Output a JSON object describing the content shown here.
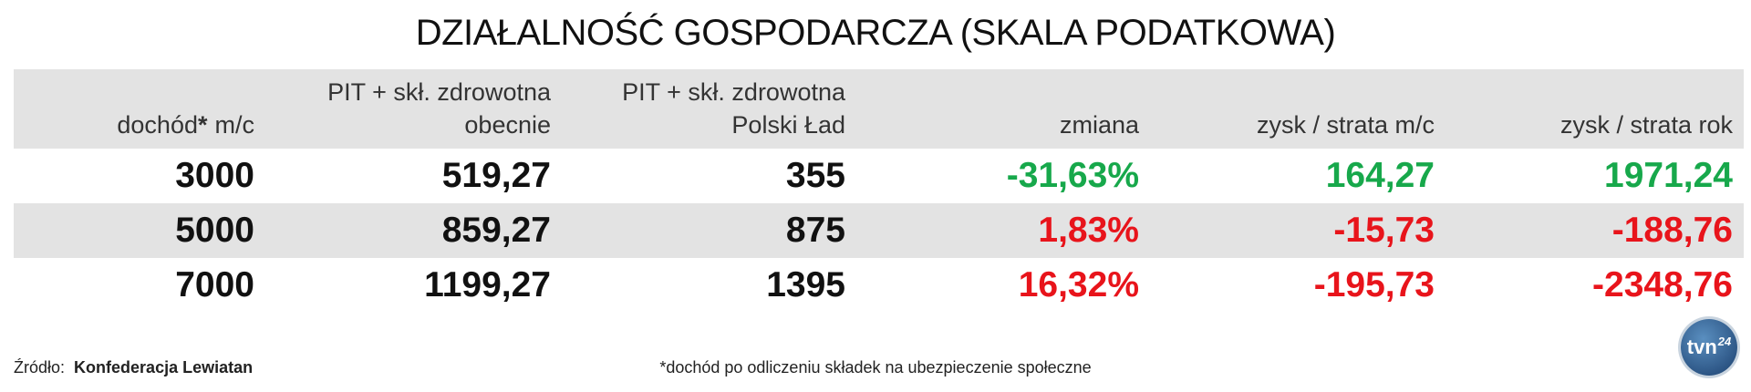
{
  "header": {
    "title": "DZIAŁALNOŚĆ GOSPODARCZA (SKALA PODATKOWA)"
  },
  "table": {
    "headers": [
      [
        "dochód",
        "*",
        "m/c"
      ],
      [
        "PIT + skł. zdrowotna",
        "obecnie"
      ],
      [
        "PIT + skł. zdrowotna",
        "Polski Ład"
      ],
      [
        "zmiana"
      ],
      [
        "zysk / strata m/c"
      ],
      [
        "zysk / strata rok"
      ]
    ],
    "rows": [
      {
        "cells": [
          "3000",
          "519,27",
          "355",
          "-31,63%",
          "164,27",
          "1971,24"
        ],
        "color": "#17a84b"
      },
      {
        "cells": [
          "5000",
          "859,27",
          "875",
          "1,83%",
          "-15,73",
          "-188,76"
        ],
        "color": "#e8141b"
      },
      {
        "cells": [
          "7000",
          "1199,27",
          "1395",
          "16,32%",
          "-195,73",
          "-2348,76"
        ],
        "color": "#e8141b"
      }
    ]
  },
  "footer": {
    "source_label": "Źródło:",
    "source": "Konfederacja Lewiatan",
    "note": "*dochód po odliczeniu składek na ubezpieczenie społeczne",
    "logo": [
      "tvn",
      "24"
    ]
  }
}
